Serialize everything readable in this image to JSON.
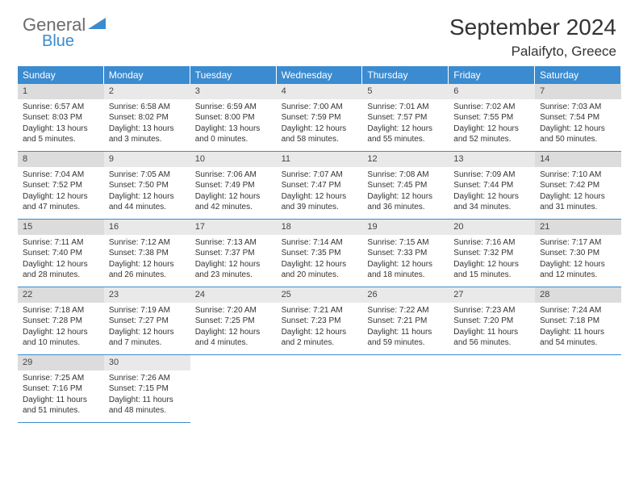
{
  "brand": {
    "general": "General",
    "blue": "Blue"
  },
  "title": "September 2024",
  "location": "Palaifyto, Greece",
  "colors": {
    "header_bg": "#3b8bd0",
    "border": "#3b8bd0",
    "daynum_bg": "#e9e9e9",
    "daynum_shaded": "#dcdcdc",
    "text": "#333333",
    "header_text": "#ffffff",
    "page_bg": "#ffffff"
  },
  "typography": {
    "title_fontsize": 28,
    "location_fontsize": 17,
    "dayheader_fontsize": 12,
    "daynum_fontsize": 11,
    "detail_fontsize": 10
  },
  "weekdays": [
    "Sunday",
    "Monday",
    "Tuesday",
    "Wednesday",
    "Thursday",
    "Friday",
    "Saturday"
  ],
  "grid": {
    "rows": 5,
    "cols": 7
  },
  "days": [
    {
      "n": 1,
      "sunrise": "6:57 AM",
      "sunset": "8:03 PM",
      "daylight": "13 hours and 5 minutes."
    },
    {
      "n": 2,
      "sunrise": "6:58 AM",
      "sunset": "8:02 PM",
      "daylight": "13 hours and 3 minutes."
    },
    {
      "n": 3,
      "sunrise": "6:59 AM",
      "sunset": "8:00 PM",
      "daylight": "13 hours and 0 minutes."
    },
    {
      "n": 4,
      "sunrise": "7:00 AM",
      "sunset": "7:59 PM",
      "daylight": "12 hours and 58 minutes."
    },
    {
      "n": 5,
      "sunrise": "7:01 AM",
      "sunset": "7:57 PM",
      "daylight": "12 hours and 55 minutes."
    },
    {
      "n": 6,
      "sunrise": "7:02 AM",
      "sunset": "7:55 PM",
      "daylight": "12 hours and 52 minutes."
    },
    {
      "n": 7,
      "sunrise": "7:03 AM",
      "sunset": "7:54 PM",
      "daylight": "12 hours and 50 minutes."
    },
    {
      "n": 8,
      "sunrise": "7:04 AM",
      "sunset": "7:52 PM",
      "daylight": "12 hours and 47 minutes."
    },
    {
      "n": 9,
      "sunrise": "7:05 AM",
      "sunset": "7:50 PM",
      "daylight": "12 hours and 44 minutes."
    },
    {
      "n": 10,
      "sunrise": "7:06 AM",
      "sunset": "7:49 PM",
      "daylight": "12 hours and 42 minutes."
    },
    {
      "n": 11,
      "sunrise": "7:07 AM",
      "sunset": "7:47 PM",
      "daylight": "12 hours and 39 minutes."
    },
    {
      "n": 12,
      "sunrise": "7:08 AM",
      "sunset": "7:45 PM",
      "daylight": "12 hours and 36 minutes."
    },
    {
      "n": 13,
      "sunrise": "7:09 AM",
      "sunset": "7:44 PM",
      "daylight": "12 hours and 34 minutes."
    },
    {
      "n": 14,
      "sunrise": "7:10 AM",
      "sunset": "7:42 PM",
      "daylight": "12 hours and 31 minutes."
    },
    {
      "n": 15,
      "sunrise": "7:11 AM",
      "sunset": "7:40 PM",
      "daylight": "12 hours and 28 minutes."
    },
    {
      "n": 16,
      "sunrise": "7:12 AM",
      "sunset": "7:38 PM",
      "daylight": "12 hours and 26 minutes."
    },
    {
      "n": 17,
      "sunrise": "7:13 AM",
      "sunset": "7:37 PM",
      "daylight": "12 hours and 23 minutes."
    },
    {
      "n": 18,
      "sunrise": "7:14 AM",
      "sunset": "7:35 PM",
      "daylight": "12 hours and 20 minutes."
    },
    {
      "n": 19,
      "sunrise": "7:15 AM",
      "sunset": "7:33 PM",
      "daylight": "12 hours and 18 minutes."
    },
    {
      "n": 20,
      "sunrise": "7:16 AM",
      "sunset": "7:32 PM",
      "daylight": "12 hours and 15 minutes."
    },
    {
      "n": 21,
      "sunrise": "7:17 AM",
      "sunset": "7:30 PM",
      "daylight": "12 hours and 12 minutes."
    },
    {
      "n": 22,
      "sunrise": "7:18 AM",
      "sunset": "7:28 PM",
      "daylight": "12 hours and 10 minutes."
    },
    {
      "n": 23,
      "sunrise": "7:19 AM",
      "sunset": "7:27 PM",
      "daylight": "12 hours and 7 minutes."
    },
    {
      "n": 24,
      "sunrise": "7:20 AM",
      "sunset": "7:25 PM",
      "daylight": "12 hours and 4 minutes."
    },
    {
      "n": 25,
      "sunrise": "7:21 AM",
      "sunset": "7:23 PM",
      "daylight": "12 hours and 2 minutes."
    },
    {
      "n": 26,
      "sunrise": "7:22 AM",
      "sunset": "7:21 PM",
      "daylight": "11 hours and 59 minutes."
    },
    {
      "n": 27,
      "sunrise": "7:23 AM",
      "sunset": "7:20 PM",
      "daylight": "11 hours and 56 minutes."
    },
    {
      "n": 28,
      "sunrise": "7:24 AM",
      "sunset": "7:18 PM",
      "daylight": "11 hours and 54 minutes."
    },
    {
      "n": 29,
      "sunrise": "7:25 AM",
      "sunset": "7:16 PM",
      "daylight": "11 hours and 51 minutes."
    },
    {
      "n": 30,
      "sunrise": "7:26 AM",
      "sunset": "7:15 PM",
      "daylight": "11 hours and 48 minutes."
    }
  ],
  "labels": {
    "sunrise": "Sunrise:",
    "sunset": "Sunset:",
    "daylight": "Daylight:"
  }
}
